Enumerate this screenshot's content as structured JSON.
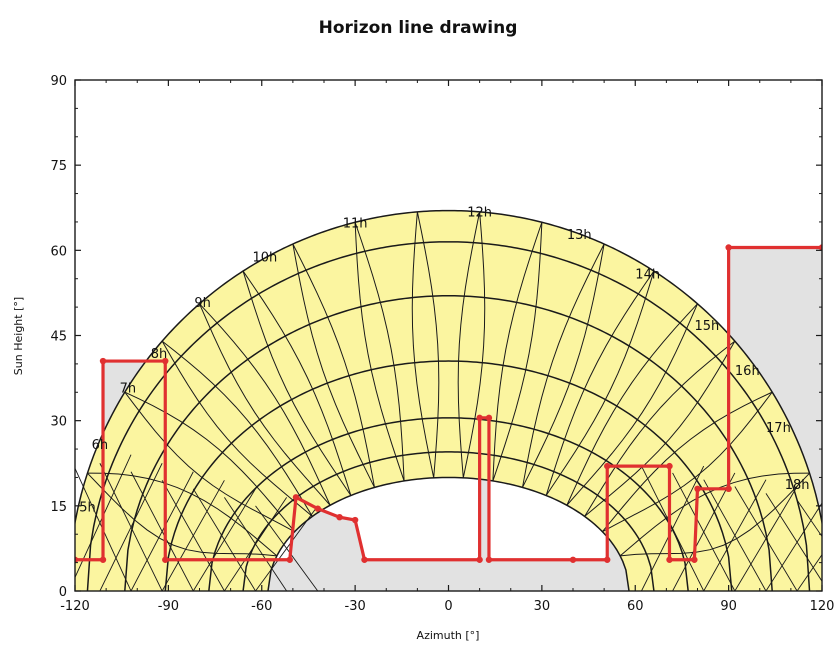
{
  "chart_data": {
    "type": "line",
    "title": "Horizon line drawing",
    "xlabel": "Azimuth [°]",
    "ylabel": "Sun Height [°]",
    "xlim": [
      -120,
      120
    ],
    "ylim": [
      0,
      90
    ],
    "x_ticks": [
      "-120",
      "-90",
      "-60",
      "-30",
      "0",
      "30",
      "60",
      "90",
      "120"
    ],
    "y_ticks": [
      "0",
      "15",
      "30",
      "45",
      "60",
      "75",
      "90"
    ],
    "grid": false,
    "colors": {
      "sun_band_fill": "#fbf5a0",
      "horizon_line": "#e03030",
      "shaded_fill": "#e2e2e2",
      "curve": "#1a1a1a"
    },
    "sun_paths": {
      "summer_solstice_max": 67,
      "winter_solstice_max": 20,
      "azimuth_range_summer": [
        -122,
        122
      ],
      "azimuth_range_winter": [
        -58,
        58
      ]
    },
    "hour_labels": [
      {
        "label": "5h",
        "az": -116,
        "h": 14
      },
      {
        "label": "6h",
        "az": -112,
        "h": 25
      },
      {
        "label": "7h",
        "az": -103,
        "h": 35
      },
      {
        "label": "8h",
        "az": -93,
        "h": 41
      },
      {
        "label": "9h",
        "az": -79,
        "h": 50
      },
      {
        "label": "10h",
        "az": -59,
        "h": 58
      },
      {
        "label": "11h",
        "az": -30,
        "h": 64
      },
      {
        "label": "12h",
        "az": 10,
        "h": 66
      },
      {
        "label": "13h",
        "az": 42,
        "h": 62
      },
      {
        "label": "14h",
        "az": 64,
        "h": 55
      },
      {
        "label": "15h",
        "az": 83,
        "h": 46
      },
      {
        "label": "16h",
        "az": 96,
        "h": 38
      },
      {
        "label": "17h",
        "az": 106,
        "h": 28
      },
      {
        "label": "18h",
        "az": 112,
        "h": 18
      }
    ],
    "horizon_series": {
      "name": "Horizon",
      "points": [
        {
          "x": -120,
          "y": 5.5
        },
        {
          "x": -111,
          "y": 5.5
        },
        {
          "x": -111,
          "y": 40.5
        },
        {
          "x": -91,
          "y": 40.5
        },
        {
          "x": -91,
          "y": 5.5
        },
        {
          "x": -51,
          "y": 5.5
        },
        {
          "x": -49,
          "y": 16.5
        },
        {
          "x": -42,
          "y": 14.5
        },
        {
          "x": -35,
          "y": 13
        },
        {
          "x": -30,
          "y": 12.5
        },
        {
          "x": -27,
          "y": 5.5
        },
        {
          "x": 10,
          "y": 5.5
        },
        {
          "x": 10,
          "y": 30.5
        },
        {
          "x": 13,
          "y": 30.5
        },
        {
          "x": 13,
          "y": 5.5
        },
        {
          "x": 40,
          "y": 5.5
        },
        {
          "x": 51,
          "y": 5.5
        },
        {
          "x": 51,
          "y": 22
        },
        {
          "x": 71,
          "y": 22
        },
        {
          "x": 71,
          "y": 5.5
        },
        {
          "x": 79,
          "y": 5.5
        },
        {
          "x": 80,
          "y": 18
        },
        {
          "x": 90,
          "y": 18
        },
        {
          "x": 90,
          "y": 60.5
        },
        {
          "x": 120,
          "y": 60.5
        }
      ]
    }
  }
}
